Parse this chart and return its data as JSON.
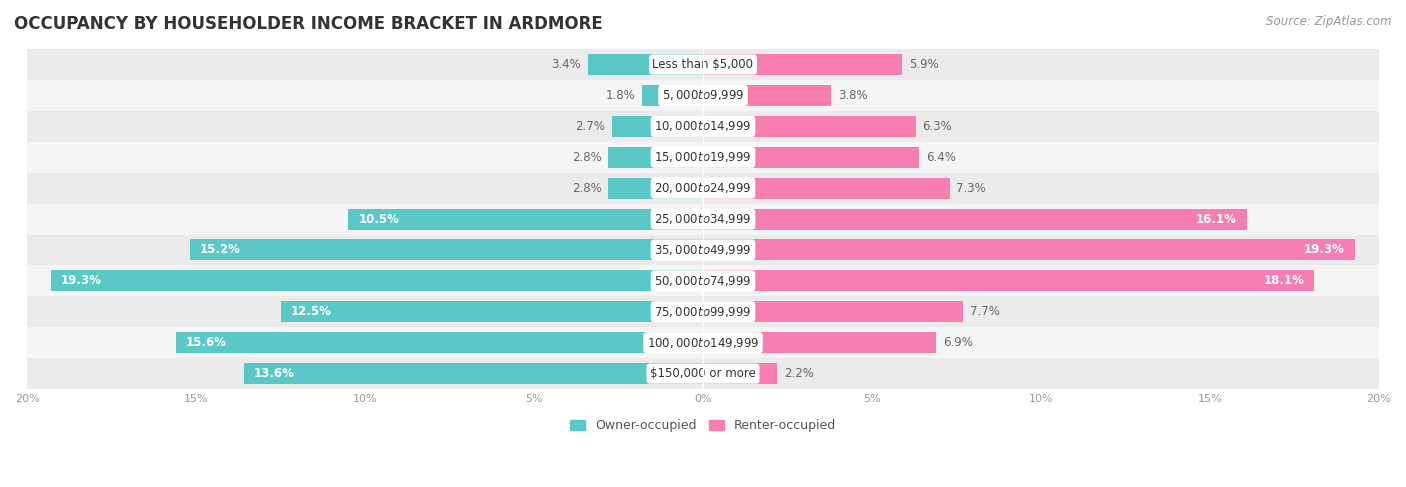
{
  "title": "OCCUPANCY BY HOUSEHOLDER INCOME BRACKET IN ARDMORE",
  "source": "Source: ZipAtlas.com",
  "categories": [
    "Less than $5,000",
    "$5,000 to $9,999",
    "$10,000 to $14,999",
    "$15,000 to $19,999",
    "$20,000 to $24,999",
    "$25,000 to $34,999",
    "$35,000 to $49,999",
    "$50,000 to $74,999",
    "$75,000 to $99,999",
    "$100,000 to $149,999",
    "$150,000 or more"
  ],
  "owner_values": [
    3.4,
    1.8,
    2.7,
    2.8,
    2.8,
    10.5,
    15.2,
    19.3,
    12.5,
    15.6,
    13.6
  ],
  "renter_values": [
    5.9,
    3.8,
    6.3,
    6.4,
    7.3,
    16.1,
    19.3,
    18.1,
    7.7,
    6.9,
    2.2
  ],
  "owner_color": "#5bc8c8",
  "renter_color": "#f77eb0",
  "bar_height": 0.68,
  "xlim": 20.0,
  "legend_owner": "Owner-occupied",
  "legend_renter": "Renter-occupied",
  "background_color": "#ffffff",
  "title_fontsize": 12,
  "source_fontsize": 8.5,
  "label_fontsize": 8.5,
  "category_fontsize": 8.5,
  "row_colors": [
    "#ebebeb",
    "#f5f5f5"
  ]
}
